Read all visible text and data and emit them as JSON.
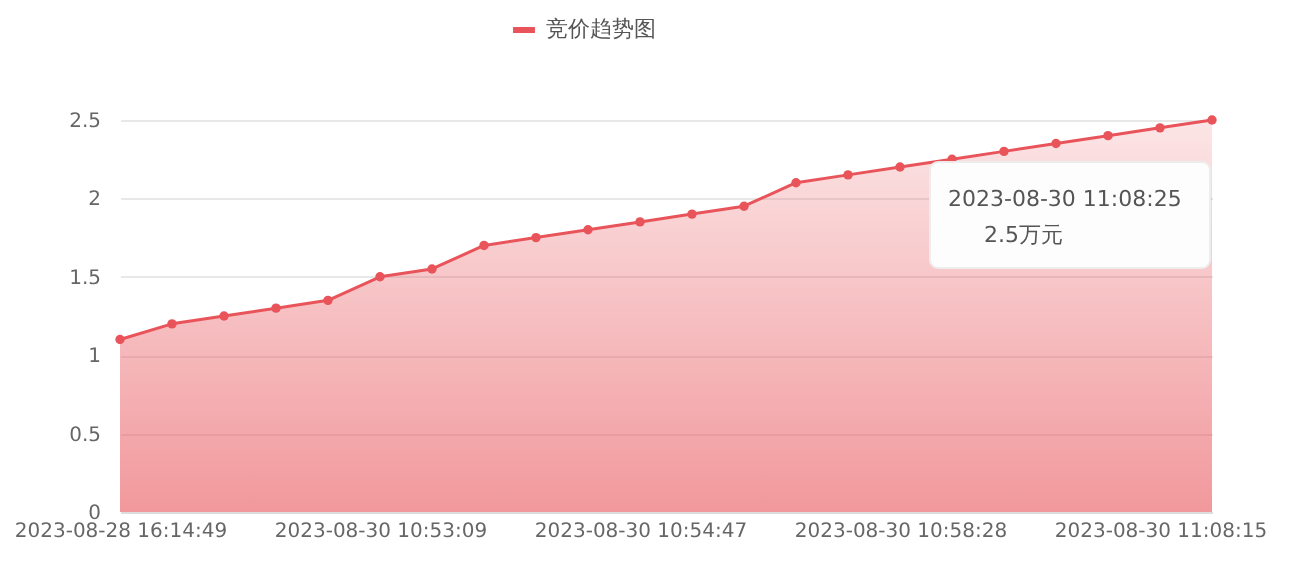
{
  "chart_data": {
    "type": "area",
    "categories": [
      "2023-08-28 16:14:49",
      null,
      null,
      null,
      null,
      "2023-08-30 10:53:09",
      null,
      null,
      null,
      null,
      "2023-08-30 10:54:47",
      null,
      null,
      null,
      null,
      "2023-08-30 10:58:28",
      null,
      null,
      null,
      null,
      "2023-08-30 11:08:15",
      null
    ],
    "series": [
      {
        "name": "竞价趋势图",
        "color": "#e8545a",
        "values": [
          1.1,
          1.2,
          1.25,
          1.3,
          1.35,
          1.5,
          1.55,
          1.7,
          1.75,
          1.8,
          1.85,
          1.9,
          1.95,
          2.1,
          2.15,
          2.2,
          2.25,
          2.3,
          2.35,
          2.4,
          2.45,
          2.5
        ]
      }
    ],
    "ylim": [
      0,
      2.5
    ],
    "yticks": [
      0,
      0.5,
      1,
      1.5,
      2,
      2.5
    ],
    "grid": "y",
    "legend": "top",
    "marker": "circle",
    "annotations": [
      "2023-08-30 11:08:25",
      "2.5万元"
    ]
  }
}
